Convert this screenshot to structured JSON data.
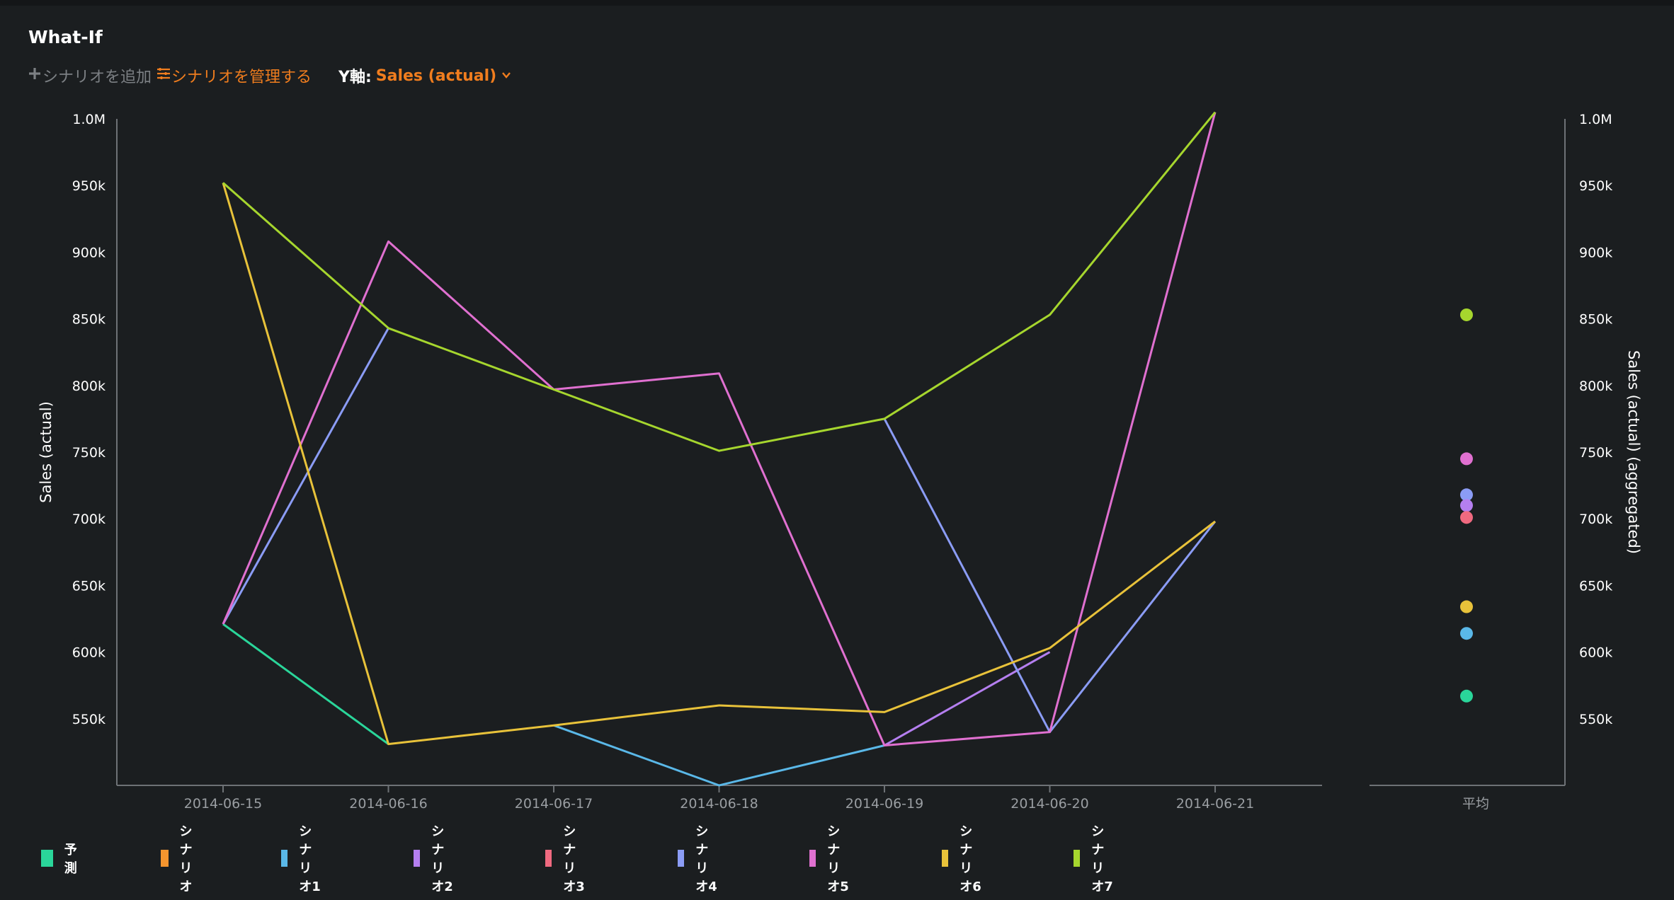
{
  "app": {
    "title": "What-If"
  },
  "toolbar": {
    "add_label": "シナリオを追加",
    "manage_label": "シナリオを管理する",
    "yaxis_label": "Y軸:",
    "yaxis_value": "Sales (actual)"
  },
  "colors": {
    "accent": "#f07d1e",
    "background": "#1b1e20",
    "axis": "#6e7276"
  },
  "chart_data": [
    {
      "type": "line",
      "title": "",
      "xlabel": "",
      "ylabel": "Sales (actual)",
      "ylim": [
        500000,
        1000000
      ],
      "y_ticks": [
        550000,
        600000,
        650000,
        700000,
        750000,
        800000,
        850000,
        900000,
        950000,
        1000000
      ],
      "y_tick_labels": [
        "550k",
        "600k",
        "650k",
        "700k",
        "750k",
        "800k",
        "850k",
        "900k",
        "950k",
        "1.0M"
      ],
      "categories": [
        "2014-06-15",
        "2014-06-16",
        "2014-06-17",
        "2014-06-18",
        "2014-06-19",
        "2014-06-20",
        "2014-06-21"
      ],
      "series": [
        {
          "name": "予測",
          "color": "#2ad69a",
          "values": [
            621000,
            531000,
            null,
            null,
            null,
            null,
            null
          ]
        },
        {
          "name": "シナリオ1",
          "color": "#5ab8e8",
          "values": [
            null,
            null,
            545000,
            500000,
            530000,
            null,
            null
          ]
        },
        {
          "name": "シナリオ2",
          "color": "#b57ff0",
          "values": [
            null,
            null,
            null,
            null,
            530000,
            600000,
            null
          ]
        },
        {
          "name": "シナリオ4",
          "color": "#8b9cf5",
          "values": [
            621000,
            843000,
            null,
            null,
            775000,
            540000,
            698000
          ]
        },
        {
          "name": "シナリオ5",
          "color": "#e070d0",
          "values": [
            621000,
            908000,
            797000,
            809000,
            530000,
            540000,
            1005000
          ]
        },
        {
          "name": "シナリオ6",
          "color": "#e8c23a",
          "values": [
            952000,
            531000,
            545000,
            560000,
            555000,
            603000,
            698000
          ]
        },
        {
          "name": "シナリオ7",
          "color": "#a6d62e",
          "values": [
            952000,
            843000,
            797000,
            751000,
            775000,
            853000,
            1005000
          ]
        }
      ]
    },
    {
      "type": "scatter",
      "title": "",
      "xlabel": "",
      "ylabel": "Sales (actual) (aggregated)",
      "ylim": [
        500000,
        1000000
      ],
      "y_ticks": [
        550000,
        600000,
        650000,
        700000,
        750000,
        800000,
        850000,
        900000,
        950000,
        1000000
      ],
      "y_tick_labels": [
        "550k",
        "600k",
        "650k",
        "700k",
        "750k",
        "800k",
        "850k",
        "900k",
        "950k",
        "1.0M"
      ],
      "categories": [
        "平均"
      ],
      "points": [
        {
          "name": "シナリオ7",
          "color": "#a6d62e",
          "value": 853000
        },
        {
          "name": "シナリオ5",
          "color": "#e070d0",
          "value": 745000
        },
        {
          "name": "シナリオ4",
          "color": "#8b9cf5",
          "value": 718000
        },
        {
          "name": "シナリオ2",
          "color": "#b57ff0",
          "value": 710000
        },
        {
          "name": "シナリオ3",
          "color": "#f06a80",
          "value": 701000
        },
        {
          "name": "シナリオ6",
          "color": "#e8c23a",
          "value": 634000
        },
        {
          "name": "シナリオ1",
          "color": "#5ab8e8",
          "value": 614000
        },
        {
          "name": "予測",
          "color": "#2ad69a",
          "value": 567000
        }
      ]
    }
  ],
  "legend": [
    {
      "label": "予測",
      "color": "#2ad69a"
    },
    {
      "label": "シナリオ",
      "color": "#f5952e"
    },
    {
      "label": "シナリオ1",
      "color": "#5ab8e8"
    },
    {
      "label": "シナリオ2",
      "color": "#b57ff0"
    },
    {
      "label": "シナリオ3",
      "color": "#f06a80"
    },
    {
      "label": "シナリオ4",
      "color": "#8b9cf5"
    },
    {
      "label": "シナリオ5",
      "color": "#e070d0"
    },
    {
      "label": "シナリオ6",
      "color": "#e8c23a"
    },
    {
      "label": "シナリオ7",
      "color": "#a6d62e"
    }
  ]
}
